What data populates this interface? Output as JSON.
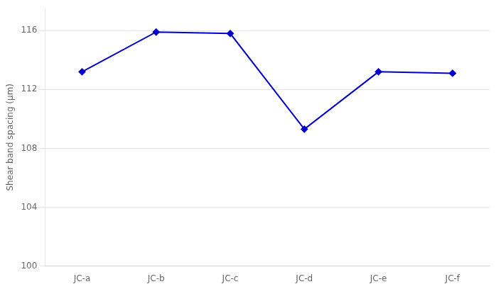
{
  "chart_data": {
    "type": "line",
    "categories": [
      "JC-a",
      "JC-b",
      "JC-c",
      "JC-d",
      "JC-e",
      "JC-f"
    ],
    "values": [
      113.2,
      115.9,
      115.8,
      109.3,
      113.2,
      113.1
    ],
    "color": "#0000CC",
    "marker": "diamond",
    "ylabel": "Shear band spacing (μm)",
    "ylim": [
      100,
      117.5
    ],
    "yticks": [
      100,
      104,
      108,
      112,
      116
    ],
    "grid": true
  }
}
